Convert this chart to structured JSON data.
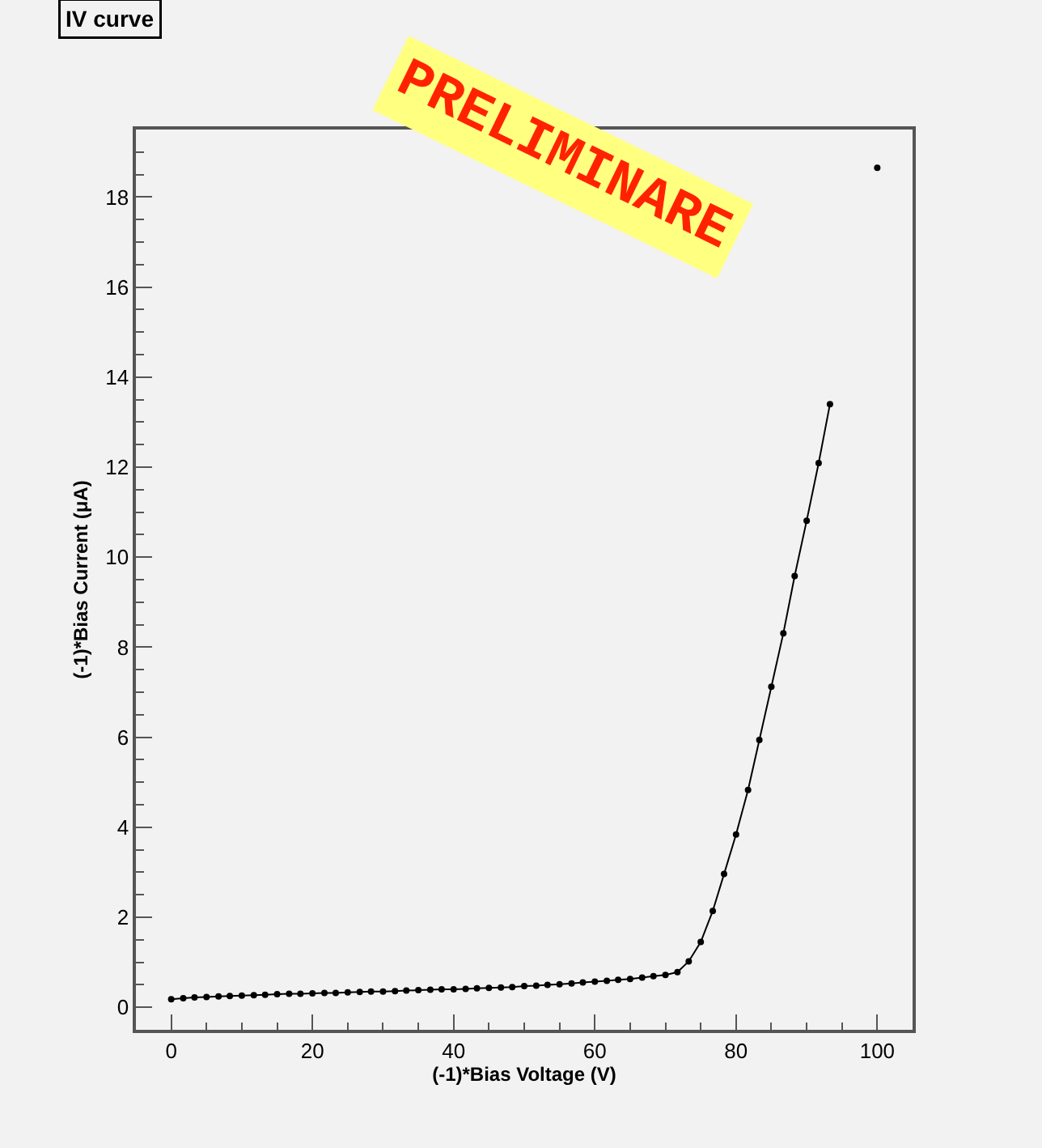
{
  "chart_data": {
    "type": "line",
    "title": "IV curve",
    "xlabel": "(-1)*Bias Voltage (V)",
    "ylabel": "(-1)*Bias Current (μA)",
    "annotations": [
      "PRELIMINARE"
    ],
    "x": [
      0,
      1.7,
      3.3,
      5,
      6.7,
      8.3,
      10,
      11.7,
      13.3,
      15,
      16.7,
      18.3,
      20,
      21.7,
      23.3,
      25,
      26.7,
      28.3,
      30,
      31.7,
      33.3,
      35,
      36.7,
      38.3,
      40,
      41.7,
      43.3,
      45,
      46.7,
      48.3,
      50,
      51.7,
      53.3,
      55,
      56.7,
      58.3,
      60,
      61.7,
      63.3,
      65,
      66.7,
      68.3,
      70,
      71.7,
      73.3,
      75,
      76.7,
      78.3,
      80,
      81.7,
      83.3,
      85,
      86.7,
      88.3,
      90,
      91.7,
      93.3,
      95,
      96.7,
      98.3,
      100
    ],
    "series": [
      {
        "color": "#000000",
        "values": [
          0.18,
          0.2,
          0.22,
          0.23,
          0.24,
          0.25,
          0.26,
          0.27,
          0.28,
          0.29,
          0.3,
          0.3,
          0.31,
          0.32,
          0.32,
          0.33,
          0.34,
          0.35,
          0.35,
          0.36,
          0.37,
          0.38,
          0.39,
          0.4,
          0.4,
          0.41,
          0.42,
          0.43,
          0.44,
          0.45,
          0.47,
          0.48,
          0.5,
          0.51,
          0.53,
          0.55,
          0.57,
          0.59,
          0.61,
          0.63,
          0.66,
          0.69,
          0.72,
          0.78,
          1.02,
          1.45,
          2.14,
          2.96,
          3.84,
          4.83,
          5.94,
          7.12,
          8.31,
          9.58,
          10.81,
          12.09,
          13.4,
          null,
          null,
          null,
          18.65
        ]
      }
    ],
    "xlim": [
      -5,
      105
    ],
    "ylim": [
      -0.5,
      19.5
    ],
    "xticks": [
      0,
      20,
      40,
      60,
      80,
      100
    ],
    "yticks": [
      0,
      2,
      4,
      6,
      8,
      10,
      12,
      14,
      16,
      18
    ],
    "marker": "circle",
    "line_style": "solid",
    "grid": false
  }
}
